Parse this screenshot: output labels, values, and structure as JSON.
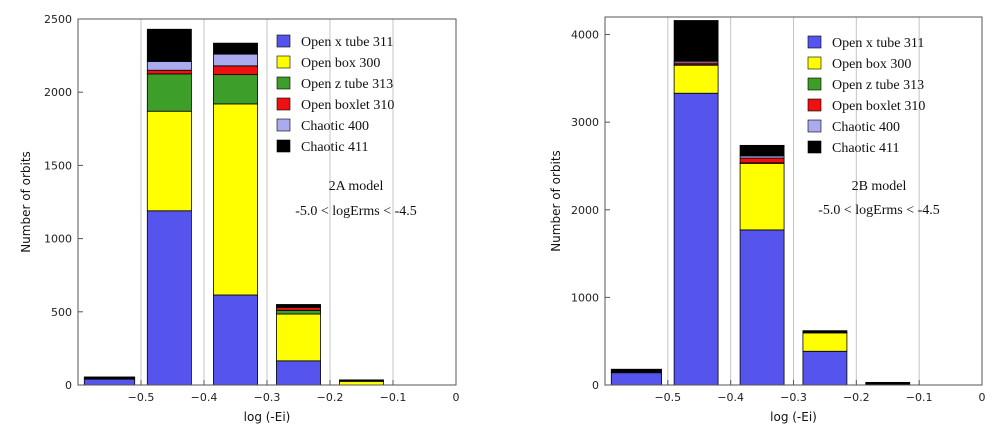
{
  "chart_data": [
    {
      "type": "bar",
      "stacked": true,
      "xlabel": "log (-Ei)",
      "ylabel": "Number of orbits",
      "xlim": [
        -0.6,
        0
      ],
      "ylim": [
        0,
        2500
      ],
      "xticks": [
        -0.5,
        -0.4,
        -0.3,
        -0.2,
        -0.1,
        0
      ],
      "xtick_labels": [
        "−0.5",
        "−0.4",
        "−0.3",
        "−0.2",
        "−0.1",
        "0"
      ],
      "yticks": [
        0,
        500,
        1000,
        1500,
        2000,
        2500
      ],
      "ytick_labels": [
        "0",
        "500",
        "1000",
        "1500",
        "2000",
        "2500"
      ],
      "grid": "vertical",
      "legend_position": "top-right",
      "annotations": [
        "2A model",
        "-5.0 < logErms < -4.5"
      ],
      "bins": [
        {
          "x0": -0.59,
          "x1": -0.51
        },
        {
          "x0": -0.49,
          "x1": -0.42
        },
        {
          "x0": -0.385,
          "x1": -0.315
        },
        {
          "x0": -0.285,
          "x1": -0.215
        },
        {
          "x0": -0.185,
          "x1": -0.115
        }
      ],
      "series": [
        {
          "name": "Open x tube 311",
          "color": "#5555ee",
          "values": [
            40,
            1190,
            615,
            165,
            0
          ]
        },
        {
          "name": "Open box 300",
          "color": "#ffff00",
          "values": [
            0,
            680,
            1305,
            320,
            25
          ]
        },
        {
          "name": "Open z tube 313",
          "color": "#3d9e2a",
          "values": [
            0,
            255,
            200,
            25,
            0
          ]
        },
        {
          "name": "Open boxlet 310",
          "color": "#ee1111",
          "values": [
            0,
            25,
            60,
            20,
            0
          ]
        },
        {
          "name": "Chaotic 400",
          "color": "#aaaaee",
          "values": [
            0,
            60,
            80,
            5,
            0
          ]
        },
        {
          "name": "Chaotic 411",
          "color": "#000000",
          "values": [
            15,
            220,
            75,
            15,
            10
          ]
        }
      ]
    },
    {
      "type": "bar",
      "stacked": true,
      "xlabel": "log (-Ei)",
      "ylabel": "Number of orbits",
      "xlim": [
        -0.6,
        0
      ],
      "ylim": [
        0,
        4200
      ],
      "xticks": [
        -0.5,
        -0.4,
        -0.3,
        -0.2,
        -0.1,
        0
      ],
      "xtick_labels": [
        "−0.5",
        "−0.4",
        "−0.3",
        "−0.2",
        "−0.1",
        "0"
      ],
      "yticks": [
        0,
        1000,
        2000,
        3000,
        4000
      ],
      "ytick_labels": [
        "0",
        "1000",
        "2000",
        "3000",
        "4000"
      ],
      "grid": "vertical",
      "legend_position": "top-right",
      "annotations": [
        "2B model",
        "-5.0 < logErms < -4.5"
      ],
      "bins": [
        {
          "x0": -0.59,
          "x1": -0.51
        },
        {
          "x0": -0.49,
          "x1": -0.42
        },
        {
          "x0": -0.385,
          "x1": -0.315
        },
        {
          "x0": -0.285,
          "x1": -0.215
        },
        {
          "x0": -0.185,
          "x1": -0.115
        }
      ],
      "series": [
        {
          "name": "Open x tube 311",
          "color": "#5555ee",
          "values": [
            140,
            3330,
            1770,
            385,
            0
          ]
        },
        {
          "name": "Open box 300",
          "color": "#ffff00",
          "values": [
            0,
            320,
            760,
            210,
            0
          ]
        },
        {
          "name": "Open z tube 313",
          "color": "#3d9e2a",
          "values": [
            0,
            5,
            5,
            0,
            0
          ]
        },
        {
          "name": "Open boxlet 310",
          "color": "#ee1111",
          "values": [
            0,
            20,
            55,
            5,
            0
          ]
        },
        {
          "name": "Chaotic 400",
          "color": "#aaaaee",
          "values": [
            0,
            20,
            25,
            0,
            0
          ]
        },
        {
          "name": "Chaotic 411",
          "color": "#000000",
          "values": [
            40,
            465,
            120,
            20,
            30
          ]
        }
      ]
    }
  ]
}
